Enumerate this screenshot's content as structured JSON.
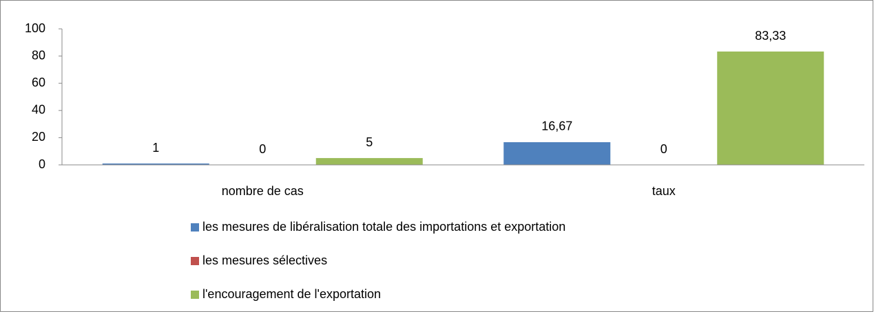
{
  "chart_data": {
    "type": "bar",
    "categories": [
      "nombre de cas",
      "taux"
    ],
    "series": [
      {
        "name": "les mesures de libéralisation totale des importations et exportation",
        "color": "#4f81bd",
        "values": [
          1,
          16.67
        ],
        "value_labels": [
          "1",
          "16,67"
        ]
      },
      {
        "name": "les mesures sélectives",
        "color": "#c0504d",
        "values": [
          0,
          0
        ],
        "value_labels": [
          "0",
          "0"
        ]
      },
      {
        "name": "l'encouragement de l'exportation",
        "color": "#9bbb59",
        "values": [
          5,
          83.33
        ],
        "value_labels": [
          "5",
          "83,33"
        ]
      }
    ],
    "ylim": [
      0,
      100
    ],
    "yticks": [
      0,
      20,
      40,
      60,
      80,
      100
    ],
    "grid": false,
    "legend": "bottom"
  }
}
